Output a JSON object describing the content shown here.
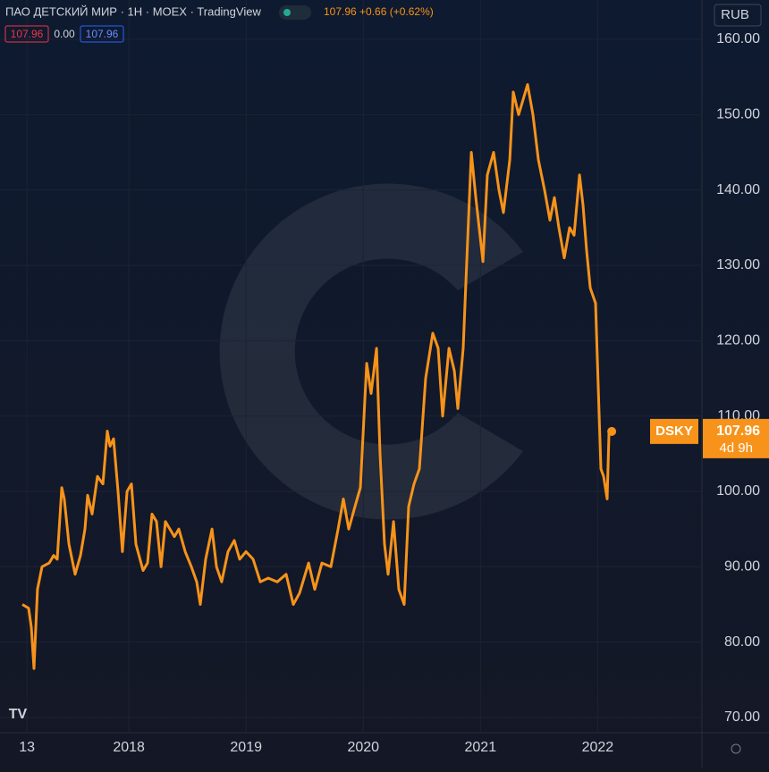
{
  "chart_data": {
    "type": "line",
    "symbol": "ПАО ДЕТСКИЙ МИР · 1Н · MOEX · TradingView",
    "quote": "107.96 +0.66 (+0.62%)",
    "ohlc": [
      "107.96",
      "0.00",
      "107.96"
    ],
    "currency": "RUB",
    "ticker": "DSKY",
    "last_price": "107.96",
    "countdown": "4d 9h",
    "color": "#f7931a",
    "grid": true,
    "x": [
      2017.091,
      2017.144,
      2017.167,
      2017.19,
      2017.22,
      2017.259,
      2017.32,
      2017.358,
      2017.388,
      2017.427,
      2017.449,
      2017.488,
      2017.541,
      2017.587,
      2017.625,
      2017.648,
      2017.686,
      2017.732,
      2017.778,
      2017.816,
      2017.839,
      2017.869,
      2017.907,
      2017.945,
      2017.984,
      2018.022,
      2018.06,
      2018.121,
      2018.159,
      2018.197,
      2018.235,
      2018.274,
      2018.312,
      2018.35,
      2018.388,
      2018.426,
      2018.48,
      2018.533,
      2018.579,
      2018.609,
      2018.655,
      2018.709,
      2018.747,
      2018.792,
      2018.846,
      2018.899,
      2018.945,
      2018.999,
      2019.06,
      2019.121,
      2019.189,
      2019.266,
      2019.342,
      2019.403,
      2019.456,
      2019.533,
      2019.586,
      2019.647,
      2019.723,
      2019.785,
      2019.83,
      2019.876,
      2019.929,
      2019.975,
      2020.029,
      2020.067,
      2020.113,
      2020.143,
      2020.181,
      2020.212,
      2020.258,
      2020.303,
      2020.349,
      2020.387,
      2020.433,
      2020.479,
      2020.532,
      2020.593,
      2020.639,
      2020.677,
      2020.731,
      2020.777,
      2020.807,
      2020.853,
      2020.876,
      2020.922,
      2020.96,
      2021.021,
      2021.059,
      2021.112,
      2021.158,
      2021.196,
      2021.25,
      2021.28,
      2021.326,
      2021.364,
      2021.402,
      2021.448,
      2021.494,
      2021.547,
      2021.593,
      2021.631,
      2021.669,
      2021.715,
      2021.761,
      2021.799,
      2021.845,
      2021.875,
      2021.906,
      2021.937,
      2021.982,
      2022.028,
      2022.051,
      2022.081,
      2022.097,
      2022.12
    ],
    "values": [
      85,
      84.5,
      82,
      76.5,
      87,
      90,
      90.5,
      91.5,
      91,
      100.5,
      99,
      93,
      89,
      91.5,
      95,
      99.5,
      97,
      102,
      101,
      108,
      106,
      107,
      100,
      92,
      100,
      101,
      93,
      89.5,
      90.5,
      97,
      96,
      90,
      96,
      95,
      94,
      95,
      92,
      90,
      88,
      85,
      91,
      95,
      90,
      88,
      92,
      93.5,
      91,
      92,
      91,
      88,
      88.5,
      88,
      89,
      85,
      86.5,
      90.5,
      87,
      90.5,
      90,
      95,
      99,
      95,
      98,
      100.5,
      117,
      113,
      119,
      105,
      93,
      89,
      96,
      87,
      85,
      98,
      101,
      103,
      115,
      121,
      119,
      110,
      119,
      116,
      111,
      119,
      128,
      145,
      139,
      130.5,
      142,
      145,
      140,
      137,
      144,
      153,
      150,
      152,
      154,
      150,
      144,
      140,
      136,
      139,
      135,
      131,
      135,
      134,
      142,
      138,
      132,
      127,
      125,
      103,
      102,
      99,
      108,
      107.96
    ],
    "xlim": [
      2016.9,
      2022.89
    ],
    "xticks": [
      {
        "value": 2017.13,
        "label": "13"
      },
      2018,
      2019,
      2020,
      2021,
      2022
    ],
    "ylim": [
      67.98,
      165.22
    ],
    "yticks": [
      {
        "value": 70,
        "label": "70.00"
      },
      {
        "value": 80,
        "label": "80.00"
      },
      {
        "value": 90,
        "label": "90.00"
      },
      {
        "value": 100,
        "label": "100.00"
      },
      {
        "value": 110,
        "label": "110.00"
      },
      {
        "value": 120,
        "label": "120.00"
      },
      {
        "value": 130,
        "label": "130.00"
      },
      {
        "value": 140,
        "label": "140.00"
      },
      {
        "value": 150,
        "label": "150.00"
      },
      {
        "value": 160,
        "label": "160.00"
      }
    ]
  }
}
